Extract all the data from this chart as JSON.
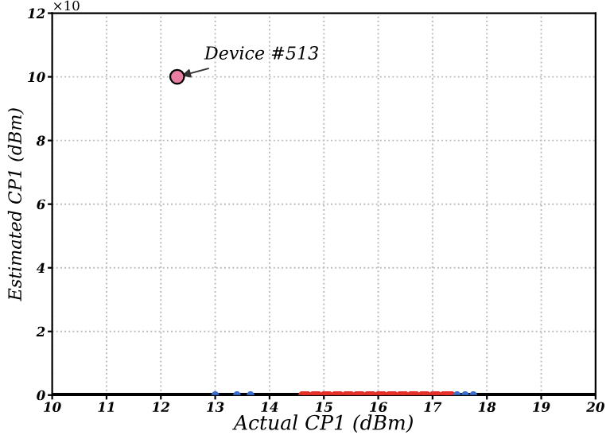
{
  "chart_data": {
    "type": "scatter",
    "xlabel": "Actual CP1 (dBm)",
    "ylabel": "Estimated CP1 (dBm)",
    "xlim": [
      10,
      20
    ],
    "xticks": [
      10,
      11,
      12,
      13,
      14,
      15,
      16,
      17,
      18,
      19,
      20
    ],
    "ylim": [
      0,
      12
    ],
    "yticks": [
      0,
      2,
      4,
      6,
      8,
      10,
      12
    ],
    "grid": true,
    "marker": "circle",
    "series": [
      {
        "color": "#e8302a",
        "x": [
          14.6,
          14.65,
          14.7,
          14.8,
          14.85,
          14.9,
          15.0,
          15.05,
          15.1,
          15.2,
          15.25,
          15.3,
          15.4,
          15.45,
          15.5,
          15.6,
          15.65,
          15.7,
          15.8,
          15.85,
          15.9,
          16.0,
          16.05,
          16.1,
          16.2,
          16.25,
          16.3,
          16.4,
          16.45,
          16.5,
          16.6,
          16.65,
          16.7,
          16.8,
          16.85,
          16.9,
          17.0,
          17.05,
          17.1,
          17.2,
          17.25,
          17.3,
          17.35
        ],
        "values": [
          0,
          0,
          0,
          0,
          0,
          0,
          0,
          0,
          0,
          0,
          0,
          0,
          0,
          0,
          0,
          0,
          0,
          0,
          0,
          0,
          0,
          0,
          0,
          0,
          0,
          0,
          0,
          0,
          0,
          0,
          0,
          0,
          0,
          0,
          0,
          0,
          0,
          0,
          0,
          0,
          0,
          0,
          0
        ]
      },
      {
        "color": "#3a6fd0",
        "x": [
          13.0,
          13.4,
          13.65,
          17.45,
          17.6,
          17.75
        ],
        "values": [
          0,
          0,
          0,
          0,
          0,
          0
        ]
      },
      {
        "color": "#e87fa0",
        "x": [
          12.3
        ],
        "values": [
          10
        ]
      }
    ],
    "ref_lines": [
      {
        "axis": "y",
        "value": 0,
        "color": "#000000"
      }
    ],
    "annotations": [
      {
        "text": "Device #513",
        "x": 12.3,
        "y": 10
      },
      "×10"
    ]
  }
}
